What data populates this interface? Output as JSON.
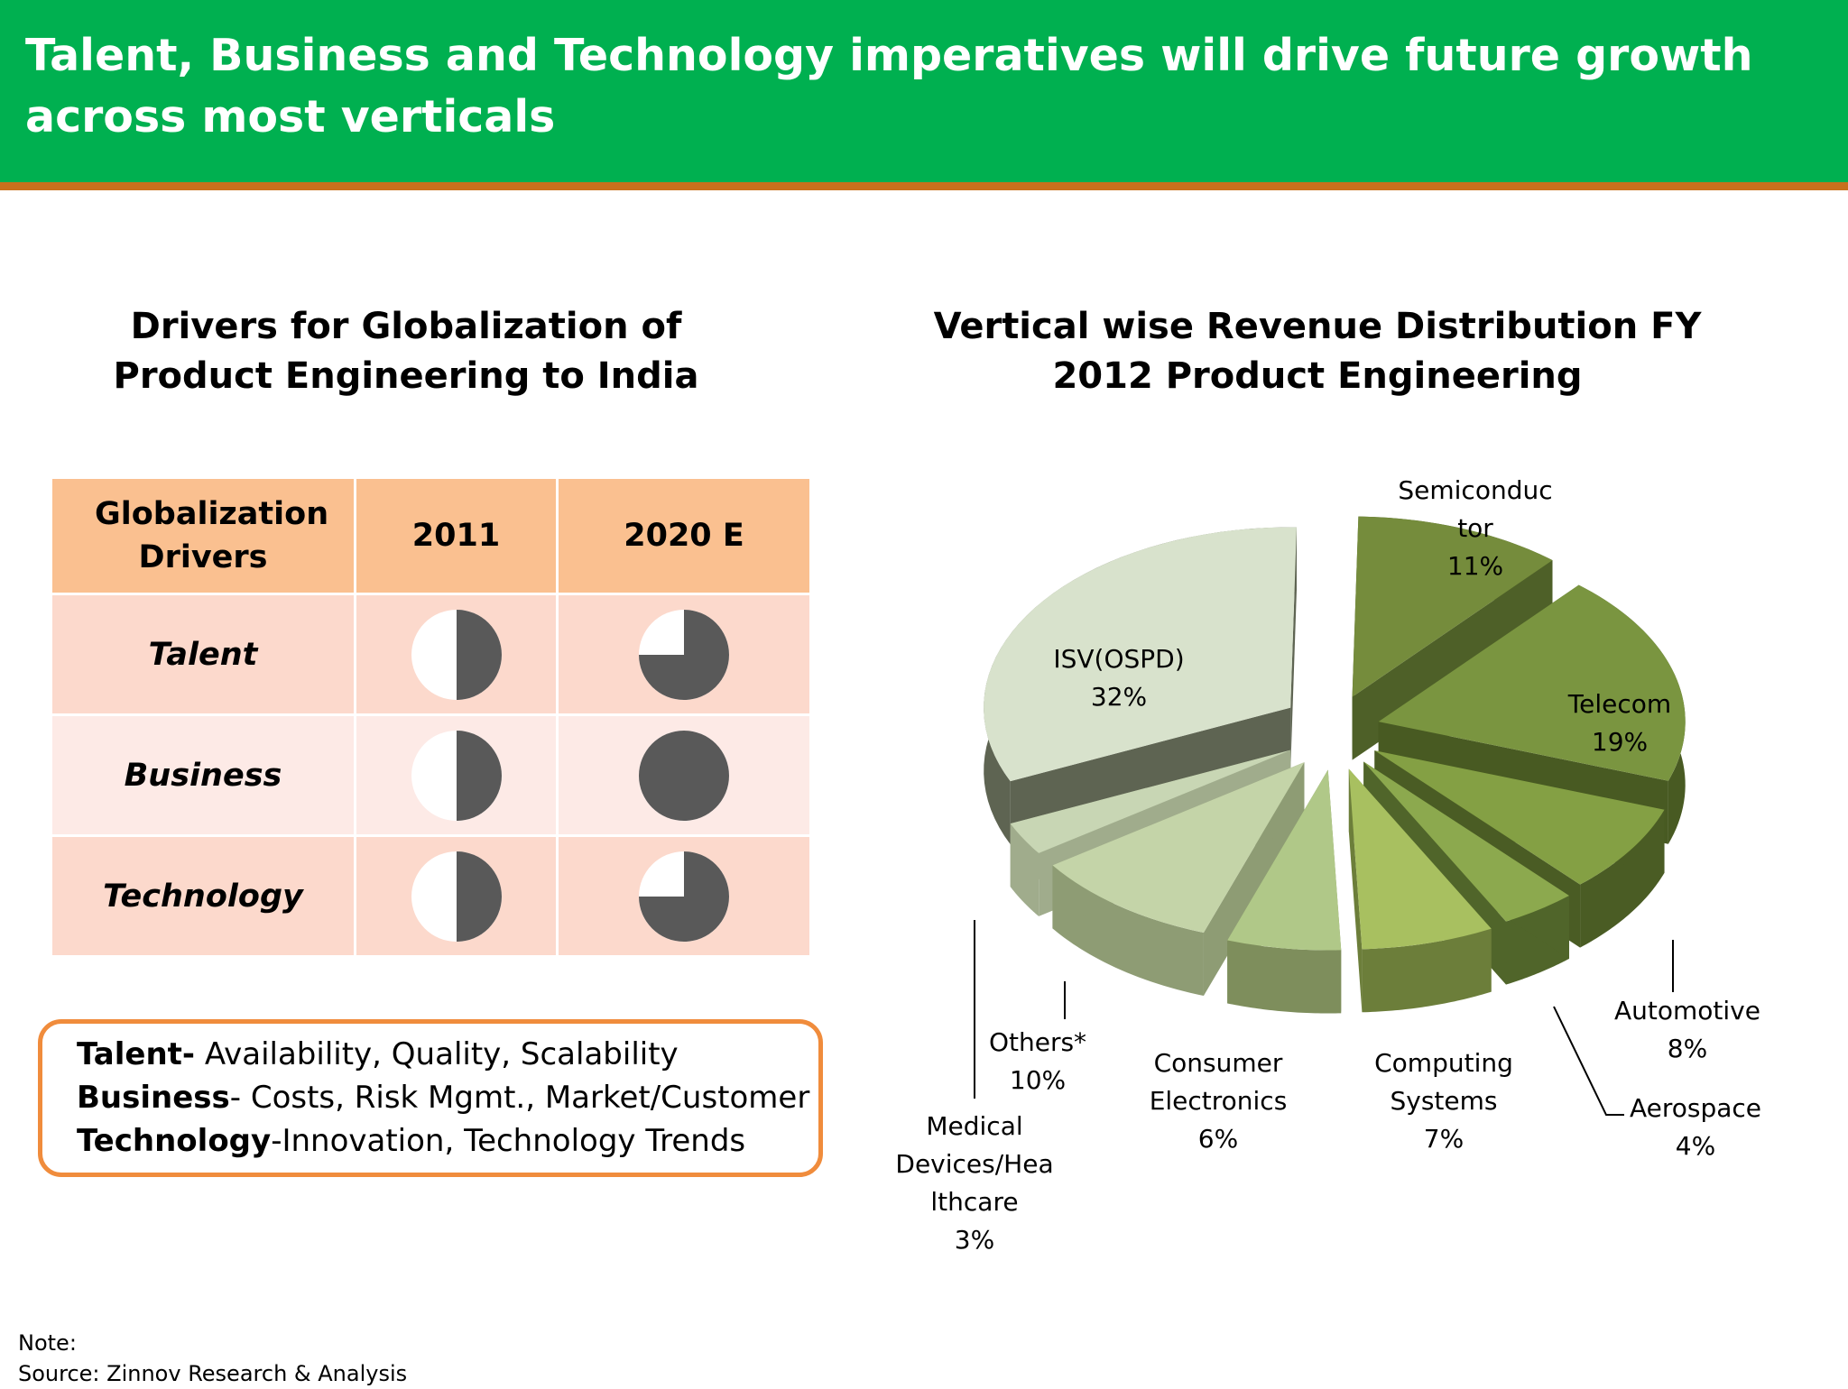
{
  "header": {
    "title": "Talent, Business and Technology imperatives  will drive future growth across  most verticals"
  },
  "left_section": {
    "title": "Drivers for Globalization  of Product Engineering to India",
    "table": {
      "columns": [
        "Globalization Drivers",
        "2011",
        "2020 E"
      ],
      "rows": [
        {
          "driver": "Talent",
          "level_2011": 0.5,
          "level_2020": 0.75
        },
        {
          "driver": "Business",
          "level_2011": 0.5,
          "level_2020": 1.0
        },
        {
          "driver": "Technology",
          "level_2011": 0.5,
          "level_2020": 0.75
        }
      ]
    },
    "legend": [
      {
        "term": "Talent-",
        "desc": " Availability, Quality, Scalability"
      },
      {
        "term": "Business",
        "desc": "- Costs, Risk Mgmt., Market/Customer"
      },
      {
        "term": "Technology",
        "desc": "-Innovation, Technology Trends"
      }
    ]
  },
  "chart_data": {
    "type": "pie",
    "title": "Vertical wise Revenue Distribution FY 2012 Product Engineering",
    "slices": [
      {
        "label": "Semiconductor",
        "value": 11
      },
      {
        "label": "Telecom",
        "value": 19
      },
      {
        "label": "Automotive",
        "value": 8
      },
      {
        "label": "Aerospace",
        "value": 4
      },
      {
        "label": "Computing Systems",
        "value": 7
      },
      {
        "label": "Consumer Electronics",
        "value": 6
      },
      {
        "label": "Others*",
        "value": 10
      },
      {
        "label": "Medical Devices/Healthcare",
        "value": 3
      },
      {
        "label": "ISV(OSPD)",
        "value": 32
      }
    ],
    "display_labels": [
      "Semiconduc\ntor\n11%",
      "Telecom\n19%",
      "Automotive\n8%",
      "Aerospace\n4%",
      "Computing\nSystems\n7%",
      "Consumer\nElectronics\n6%",
      "Others*\n10%",
      "Medical\nDevices/Hea\nlthcare\n3%",
      "ISV(OSPD)\n32%"
    ],
    "colors": [
      "#758c3c",
      "#7a9540",
      "#84a044",
      "#8ca94e",
      "#a8c060",
      "#b0c888",
      "#c4d4a8",
      "#c8d6b4",
      "#d8e2cc"
    ],
    "side_colors": [
      "#4e6028",
      "#485a22",
      "#4a5c24",
      "#50652a",
      "#6c7e3a",
      "#7e8e5c",
      "#8e9c74",
      "#a0ac8c",
      "#5e6452"
    ],
    "style": "exploded 3D pie"
  },
  "footer": {
    "note": "Note:",
    "source": "Source: Zinnov Research & Analysis"
  }
}
